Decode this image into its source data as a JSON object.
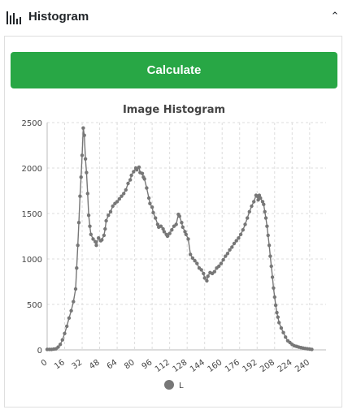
{
  "header": {
    "title": "Histogram",
    "icon": "histogram-icon",
    "toggle_icon": "chevron-up-icon"
  },
  "calculate": {
    "label": "Calculate",
    "color": "#28a745"
  },
  "chart_data": {
    "type": "line",
    "title": "Image Histogram",
    "xlabel": "",
    "ylabel": "",
    "xlim": [
      0,
      255
    ],
    "ylim": [
      0,
      2500
    ],
    "x_ticks": [
      "0",
      "16",
      "32",
      "48",
      "64",
      "80",
      "96",
      "112",
      "128",
      "144",
      "160",
      "176",
      "192",
      "208",
      "224",
      "240"
    ],
    "y_ticks": [
      "0",
      "500",
      "1000",
      "1500",
      "2000",
      "2500"
    ],
    "grid": true,
    "legend_position": "bottom",
    "series": [
      {
        "name": "L",
        "color": "#777777",
        "points": [
          [
            0,
            5
          ],
          [
            2,
            5
          ],
          [
            4,
            5
          ],
          [
            6,
            8
          ],
          [
            8,
            12
          ],
          [
            10,
            30
          ],
          [
            12,
            60
          ],
          [
            14,
            110
          ],
          [
            16,
            180
          ],
          [
            18,
            260
          ],
          [
            20,
            350
          ],
          [
            22,
            430
          ],
          [
            24,
            530
          ],
          [
            26,
            670
          ],
          [
            27,
            900
          ],
          [
            28,
            1150
          ],
          [
            29,
            1400
          ],
          [
            30,
            1690
          ],
          [
            31,
            1900
          ],
          [
            32,
            2140
          ],
          [
            33,
            2440
          ],
          [
            34,
            2360
          ],
          [
            35,
            2100
          ],
          [
            36,
            1950
          ],
          [
            37,
            1720
          ],
          [
            38,
            1480
          ],
          [
            39,
            1360
          ],
          [
            40,
            1270
          ],
          [
            42,
            1220
          ],
          [
            44,
            1190
          ],
          [
            45,
            1150
          ],
          [
            47,
            1230
          ],
          [
            49,
            1200
          ],
          [
            50,
            1210
          ],
          [
            52,
            1260
          ],
          [
            53,
            1330
          ],
          [
            54,
            1420
          ],
          [
            56,
            1480
          ],
          [
            58,
            1520
          ],
          [
            60,
            1580
          ],
          [
            62,
            1610
          ],
          [
            64,
            1630
          ],
          [
            66,
            1660
          ],
          [
            68,
            1690
          ],
          [
            70,
            1720
          ],
          [
            72,
            1760
          ],
          [
            74,
            1830
          ],
          [
            76,
            1870
          ],
          [
            77,
            1920
          ],
          [
            79,
            1960
          ],
          [
            81,
            2000
          ],
          [
            82,
            1980
          ],
          [
            84,
            2010
          ],
          [
            85,
            1950
          ],
          [
            87,
            1940
          ],
          [
            88,
            1900
          ],
          [
            89,
            1880
          ],
          [
            91,
            1780
          ],
          [
            93,
            1670
          ],
          [
            94,
            1610
          ],
          [
            96,
            1570
          ],
          [
            97,
            1510
          ],
          [
            99,
            1450
          ],
          [
            101,
            1380
          ],
          [
            102,
            1350
          ],
          [
            104,
            1360
          ],
          [
            106,
            1330
          ],
          [
            107,
            1300
          ],
          [
            109,
            1270
          ],
          [
            110,
            1250
          ],
          [
            112,
            1280
          ],
          [
            114,
            1320
          ],
          [
            116,
            1360
          ],
          [
            118,
            1380
          ],
          [
            120,
            1490
          ],
          [
            121,
            1470
          ],
          [
            123,
            1400
          ],
          [
            124,
            1350
          ],
          [
            126,
            1300
          ],
          [
            127,
            1270
          ],
          [
            129,
            1220
          ],
          [
            131,
            1050
          ],
          [
            133,
            1010
          ],
          [
            135,
            980
          ],
          [
            137,
            950
          ],
          [
            139,
            900
          ],
          [
            141,
            880
          ],
          [
            143,
            840
          ],
          [
            144,
            790
          ],
          [
            146,
            760
          ],
          [
            147,
            810
          ],
          [
            149,
            850
          ],
          [
            151,
            840
          ],
          [
            153,
            860
          ],
          [
            155,
            900
          ],
          [
            157,
            920
          ],
          [
            159,
            950
          ],
          [
            161,
            990
          ],
          [
            163,
            1030
          ],
          [
            165,
            1060
          ],
          [
            167,
            1100
          ],
          [
            169,
            1130
          ],
          [
            171,
            1170
          ],
          [
            173,
            1200
          ],
          [
            175,
            1230
          ],
          [
            177,
            1270
          ],
          [
            179,
            1320
          ],
          [
            181,
            1380
          ],
          [
            183,
            1450
          ],
          [
            185,
            1520
          ],
          [
            187,
            1580
          ],
          [
            189,
            1630
          ],
          [
            191,
            1700
          ],
          [
            192,
            1690
          ],
          [
            193,
            1650
          ],
          [
            194,
            1700
          ],
          [
            195,
            1670
          ],
          [
            197,
            1630
          ],
          [
            198,
            1600
          ],
          [
            199,
            1520
          ],
          [
            200,
            1450
          ],
          [
            201,
            1360
          ],
          [
            202,
            1260
          ],
          [
            203,
            1150
          ],
          [
            204,
            1030
          ],
          [
            205,
            920
          ],
          [
            206,
            800
          ],
          [
            207,
            680
          ],
          [
            208,
            580
          ],
          [
            209,
            490
          ],
          [
            210,
            410
          ],
          [
            211,
            360
          ],
          [
            212,
            300
          ],
          [
            214,
            240
          ],
          [
            216,
            190
          ],
          [
            218,
            140
          ],
          [
            220,
            100
          ],
          [
            222,
            80
          ],
          [
            224,
            60
          ],
          [
            226,
            45
          ],
          [
            228,
            38
          ],
          [
            230,
            30
          ],
          [
            232,
            25
          ],
          [
            234,
            20
          ],
          [
            236,
            15
          ],
          [
            238,
            12
          ],
          [
            240,
            8
          ],
          [
            242,
            5
          ]
        ]
      }
    ]
  }
}
